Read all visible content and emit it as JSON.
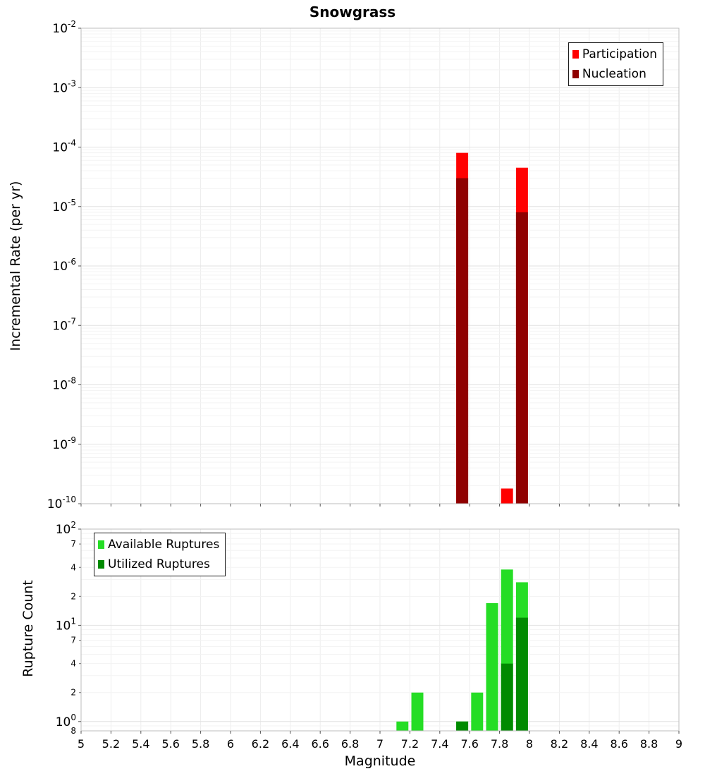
{
  "title": "Snowgrass",
  "chart_data": [
    {
      "type": "bar",
      "panel": "incremental-rate",
      "title": "Snowgrass",
      "ylabel": "Incremental Rate (per yr)",
      "xlabel": "",
      "yscale": "log",
      "ylim": [
        1e-10,
        0.01
      ],
      "xlim": [
        5,
        9
      ],
      "grid": true,
      "legend_position": "top-right",
      "bar_width_mag": 0.08,
      "x_ticks": [
        5,
        5.2,
        5.4,
        5.6,
        5.8,
        6,
        6.2,
        6.4,
        6.6,
        6.8,
        7,
        7.2,
        7.4,
        7.6,
        7.8,
        8,
        8.2,
        8.4,
        8.6,
        8.8,
        9
      ],
      "y_ticks": [
        0.01,
        0.001,
        0.0001,
        1e-05,
        1e-06,
        1e-07,
        1e-08,
        1e-09,
        1e-10
      ],
      "series": [
        {
          "name": "Participation",
          "color": "#ff0000",
          "points": [
            {
              "x": 7.55,
              "y": 8e-05
            },
            {
              "x": 7.85,
              "y": 1.8e-10
            },
            {
              "x": 7.95,
              "y": 4.5e-05
            }
          ]
        },
        {
          "name": "Nucleation",
          "color": "#8f0000",
          "points": [
            {
              "x": 7.55,
              "y": 3e-05
            },
            {
              "x": 7.95,
              "y": 8e-06
            }
          ]
        }
      ]
    },
    {
      "type": "bar",
      "panel": "rupture-count",
      "title": "",
      "ylabel": "Rupture Count",
      "xlabel": "Magnitude",
      "yscale": "log",
      "ylim": [
        0.8,
        100
      ],
      "xlim": [
        5,
        9
      ],
      "grid": true,
      "legend_position": "top-left",
      "bar_width_mag": 0.08,
      "x_ticks": [
        5,
        5.2,
        5.4,
        5.6,
        5.8,
        6,
        6.2,
        6.4,
        6.6,
        6.8,
        7,
        7.2,
        7.4,
        7.6,
        7.8,
        8,
        8.2,
        8.4,
        8.6,
        8.8,
        9
      ],
      "y_ticks": [
        100,
        10,
        1
      ],
      "y_minor_labeled_ticks": [
        70,
        40,
        20,
        7,
        4,
        2
      ],
      "y_edge_tick": 0.8,
      "series": [
        {
          "name": "Available Ruptures",
          "color": "#25dd25",
          "points": [
            {
              "x": 7.15,
              "y": 1
            },
            {
              "x": 7.25,
              "y": 2
            },
            {
              "x": 7.55,
              "y": 1
            },
            {
              "x": 7.65,
              "y": 2
            },
            {
              "x": 7.75,
              "y": 17
            },
            {
              "x": 7.85,
              "y": 38
            },
            {
              "x": 7.95,
              "y": 28
            }
          ]
        },
        {
          "name": "Utilized Ruptures",
          "color": "#008a00",
          "points": [
            {
              "x": 7.55,
              "y": 1
            },
            {
              "x": 7.85,
              "y": 4
            },
            {
              "x": 7.95,
              "y": 12
            }
          ]
        }
      ]
    }
  ]
}
